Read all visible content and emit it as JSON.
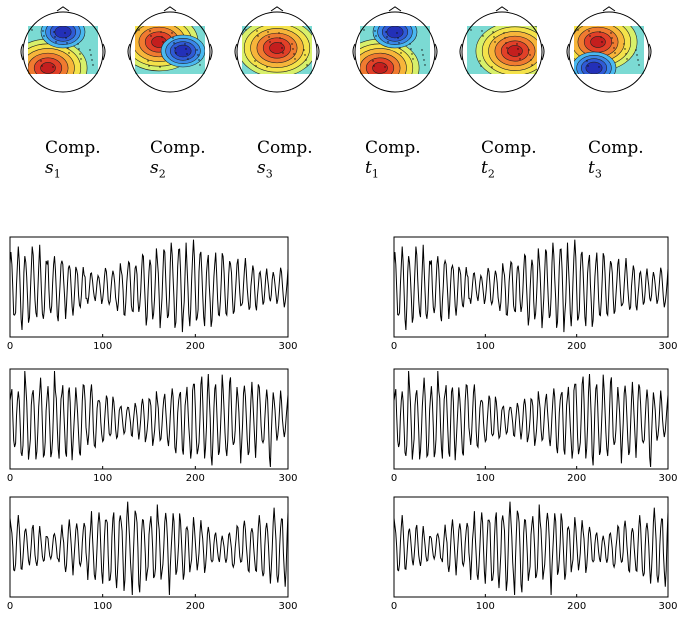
{
  "components": [
    {
      "word": "Comp.",
      "symbol": "s",
      "sub": "1"
    },
    {
      "word": "Comp.",
      "symbol": "s",
      "sub": "2"
    },
    {
      "word": "Comp.",
      "symbol": "s",
      "sub": "3"
    },
    {
      "word": "Comp.",
      "symbol": "t",
      "sub": "1"
    },
    {
      "word": "Comp.",
      "symbol": "t",
      "sub": "2"
    },
    {
      "word": "Comp.",
      "symbol": "t",
      "sub": "3"
    }
  ],
  "scalp_maps": [
    {
      "hot": "bottom-left",
      "cold": "top-center"
    },
    {
      "hot": "top-left",
      "cold": "center-right"
    },
    {
      "hot": "center",
      "cold": "none"
    },
    {
      "hot": "bottom-left",
      "cold": "top-center"
    },
    {
      "hot": "center-right",
      "cold": "none"
    },
    {
      "hot": "top-left",
      "cold": "bottom-left"
    }
  ],
  "chart_data": [
    {
      "type": "line",
      "xlim": [
        0,
        300
      ],
      "x_ticks": [
        "0",
        "100",
        "200",
        "300"
      ],
      "grid": false,
      "seed": 11
    },
    {
      "type": "line",
      "xlim": [
        0,
        300
      ],
      "x_ticks": [
        "0",
        "100",
        "200",
        "300"
      ],
      "grid": false,
      "seed": 23
    },
    {
      "type": "line",
      "xlim": [
        0,
        300
      ],
      "x_ticks": [
        "0",
        "100",
        "200",
        "300"
      ],
      "grid": false,
      "seed": 37
    },
    {
      "type": "line",
      "xlim": [
        0,
        300
      ],
      "x_ticks": [
        "0",
        "100",
        "200",
        "300"
      ],
      "grid": false,
      "seed": 11
    },
    {
      "type": "line",
      "xlim": [
        0,
        300
      ],
      "x_ticks": [
        "0",
        "100",
        "200",
        "300"
      ],
      "grid": false,
      "seed": 23
    },
    {
      "type": "line",
      "xlim": [
        0,
        300
      ],
      "x_ticks": [
        "0",
        "100",
        "200",
        "300"
      ],
      "grid": false,
      "seed": 37
    }
  ]
}
